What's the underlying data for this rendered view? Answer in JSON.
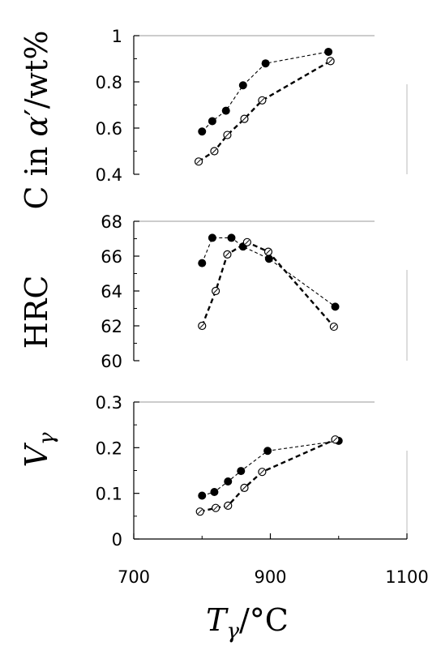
{
  "chart_data": [
    {
      "type": "line",
      "ylabel": "C in α′/wt%",
      "ylim": [
        0.4,
        1.0
      ],
      "yticks": [
        0.4,
        0.6,
        0.8,
        1.0
      ],
      "ytick_labels": [
        "0.4",
        "0.6",
        "0.8",
        "1"
      ],
      "xlim": [
        700,
        1100
      ],
      "series": [
        {
          "marker": "filled",
          "line": "thin-dash",
          "x": [
            800,
            815,
            835,
            860,
            893,
            985
          ],
          "y": [
            0.585,
            0.63,
            0.675,
            0.785,
            0.88,
            0.93
          ]
        },
        {
          "marker": "open",
          "line": "thick-dash",
          "x": [
            795,
            818,
            837,
            862,
            888,
            988
          ],
          "y": [
            0.455,
            0.5,
            0.57,
            0.64,
            0.72,
            0.89
          ]
        }
      ]
    },
    {
      "type": "line",
      "ylabel": "HRC",
      "ylim": [
        60,
        68
      ],
      "yticks": [
        60,
        62,
        64,
        66,
        68
      ],
      "ytick_labels": [
        "60",
        "62",
        "64",
        "66",
        "68"
      ],
      "xlim": [
        700,
        1100
      ],
      "series": [
        {
          "marker": "filled",
          "line": "thin-dash",
          "x": [
            800,
            815,
            843,
            860,
            898,
            995
          ],
          "y": [
            65.6,
            67.05,
            67.05,
            66.55,
            65.85,
            63.1
          ]
        },
        {
          "marker": "open",
          "line": "thick-dash",
          "x": [
            800,
            820,
            837,
            866,
            897,
            993
          ],
          "y": [
            62.0,
            64.0,
            66.1,
            66.8,
            66.25,
            61.95
          ]
        }
      ]
    },
    {
      "type": "line",
      "ylabel": "Vγ",
      "ylim": [
        0,
        0.3
      ],
      "yticks": [
        0,
        0.1,
        0.2,
        0.3
      ],
      "ytick_labels": [
        "0",
        "0.1",
        "0.2",
        "0.3"
      ],
      "xlim": [
        700,
        1100
      ],
      "xticks": [
        700,
        900,
        1100
      ],
      "xtick_labels": [
        "700",
        "900",
        "1100"
      ],
      "xlabel": "Tγ/°C",
      "series": [
        {
          "marker": "filled",
          "line": "thin-dash",
          "x": [
            800,
            818,
            838,
            857,
            896,
            1000
          ],
          "y": [
            0.095,
            0.103,
            0.126,
            0.149,
            0.193,
            0.215
          ]
        },
        {
          "marker": "open",
          "line": "thick-dash",
          "x": [
            797,
            820,
            838,
            862,
            888,
            995
          ],
          "y": [
            0.06,
            0.068,
            0.073,
            0.112,
            0.147,
            0.218
          ]
        }
      ]
    }
  ]
}
